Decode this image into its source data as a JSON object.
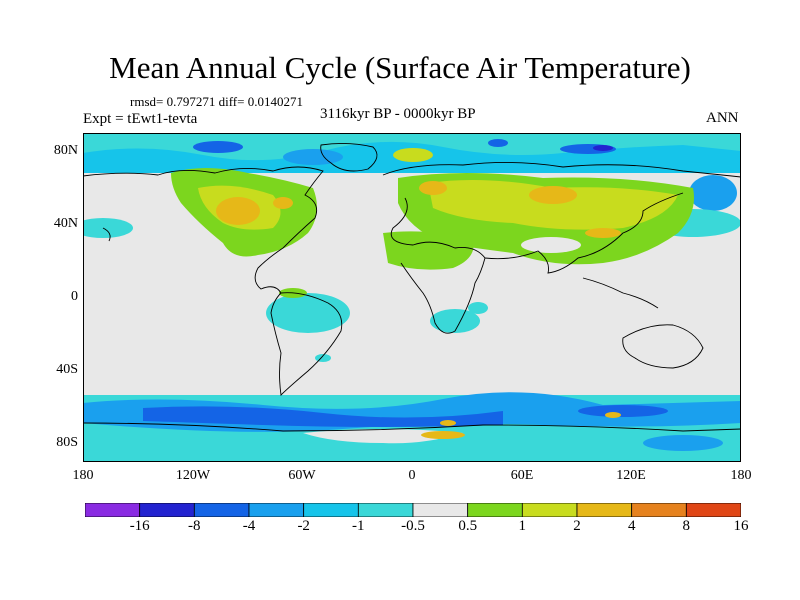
{
  "title": "Mean Annual Cycle (Surface Air Temperature)",
  "stats": "rmsd= 0.797271 diff= 0.0140271",
  "experiment": "Expt = tEwt1-tevta",
  "period": "3116kyr BP - 0000kyr BP",
  "season": "ANN",
  "lat_labels": [
    "80N",
    "40N",
    "0",
    "40S",
    "80S"
  ],
  "lon_labels": [
    "180",
    "120W",
    "60W",
    "0",
    "60E",
    "120E",
    "180"
  ],
  "colorbar": {
    "labels": [
      "-16",
      "-8",
      "-4",
      "-2",
      "-1",
      "-0.5",
      "0.5",
      "1",
      "2",
      "4",
      "8",
      "16"
    ],
    "colors": [
      "#8a2be2",
      "#2323d0",
      "#1464e6",
      "#1aa0ee",
      "#16c4ea",
      "#3ad8d8",
      "#e8e8e8",
      "#7cd61e",
      "#c8dc1e",
      "#e6b818",
      "#e6821e",
      "#e04616"
    ]
  },
  "palette": {
    "neutral": "#e8e8e8",
    "cyan": "#3ad8d8",
    "lightblue": "#16c4ea",
    "blue": "#1aa0ee",
    "darkblue": "#1464e6",
    "navy": "#2323d0",
    "green": "#7cd61e",
    "yellowgreen": "#c8dc1e",
    "orange": "#e6b818"
  }
}
